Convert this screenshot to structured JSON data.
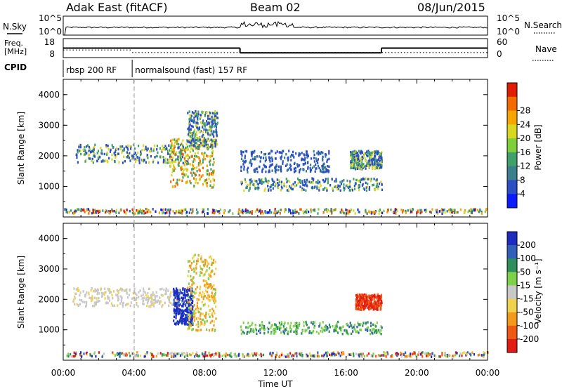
{
  "header": {
    "station": "Adak East (fitACF)",
    "beam": "Beam 02",
    "date": "08/Jun/2015"
  },
  "nsky_panel": {
    "left_label": "N.Sky",
    "right_label": "N.Search",
    "left_ticks": [
      "10^5",
      "10^0"
    ],
    "right_ticks": [
      "10^5",
      "10^0"
    ]
  },
  "freq_panel": {
    "left_label_line1": "Freq.",
    "left_label_line2": "[MHz]",
    "right_label": "Nave",
    "left_ticks": [
      "18",
      "8"
    ],
    "right_ticks": [
      "60",
      "0"
    ],
    "freq_series_mhz": [
      {
        "x": [
          0.0,
          10.0
        ],
        "y": 13.0
      },
      {
        "x": [
          10.0,
          18.0
        ],
        "y": 10.5
      },
      {
        "x": [
          18.0,
          24.0
        ],
        "y": 13.0
      }
    ],
    "nave_series": [
      {
        "x": [
          0.0,
          3.9
        ],
        "y": 24
      },
      {
        "x": [
          3.9,
          24.0
        ],
        "y": 16
      }
    ]
  },
  "cpid_panel": {
    "label": "CPID",
    "segments": [
      {
        "name": "rbsp 200 RF",
        "start_h": 0.0,
        "end_h": 3.9
      },
      {
        "name": "normalsound (fast) 157 RF",
        "start_h": 3.9,
        "end_h": 24.0
      }
    ]
  },
  "chart_data": [
    {
      "type": "heatmap",
      "name": "power",
      "ylabel": "Slant Range [km]",
      "xlabel": "",
      "xlim": [
        0,
        24
      ],
      "ylim": [
        0,
        4500
      ],
      "yticks": [
        "1000",
        "2000",
        "3000",
        "4000"
      ],
      "colorbar": {
        "label": "Power [dB]",
        "ticks": [
          "4",
          "8",
          "12",
          "16",
          "20",
          "24",
          "28"
        ],
        "colors": [
          "#0a1cff",
          "#2b4fc4",
          "#3a7f8c",
          "#3fa06a",
          "#7fcf3a",
          "#d8d820",
          "#f7a600",
          "#f36a00",
          "#e11c00"
        ]
      },
      "features": [
        {
          "t": [
            0.0,
            24.0
          ],
          "r": [
            150,
            300
          ],
          "level": "noise"
        },
        {
          "t": [
            0.7,
            7.0
          ],
          "r": [
            1800,
            2400
          ],
          "level": "mid"
        },
        {
          "t": [
            6.0,
            8.5
          ],
          "r": [
            1000,
            2600
          ],
          "level": "high"
        },
        {
          "t": [
            7.0,
            8.7
          ],
          "r": [
            2300,
            3500
          ],
          "level": "mid"
        },
        {
          "t": [
            10.0,
            18.0
          ],
          "r": [
            900,
            1300
          ],
          "level": "mid"
        },
        {
          "t": [
            10.0,
            15.0
          ],
          "r": [
            1500,
            2200
          ],
          "level": "low"
        },
        {
          "t": [
            16.2,
            18.0
          ],
          "r": [
            1600,
            2200
          ],
          "level": "mid"
        }
      ]
    },
    {
      "type": "heatmap",
      "name": "velocity",
      "ylabel": "Slant Range [km]",
      "xlabel": "Time UT",
      "xlim": [
        0,
        24
      ],
      "ylim": [
        0,
        4500
      ],
      "yticks": [
        "1000",
        "2000",
        "3000",
        "4000"
      ],
      "xticks": [
        "00:00",
        "04:00",
        "08:00",
        "12:00",
        "16:00",
        "20:00",
        "00:00"
      ],
      "colorbar": {
        "label": "Velocity [m s⁻¹]",
        "ticks": [
          "200",
          "100",
          "50",
          "15",
          "-15",
          "-50",
          "-100",
          "-200"
        ],
        "colors": [
          "#1c2cc0",
          "#3260b8",
          "#2e8f5c",
          "#7ed24a",
          "#c8c8c8",
          "#f2d24b",
          "#f29a1c",
          "#ee5a14",
          "#e21c12"
        ]
      },
      "features": [
        {
          "t": [
            0.0,
            24.0
          ],
          "r": [
            150,
            300
          ],
          "level": "mixed"
        },
        {
          "t": [
            0.5,
            6.5
          ],
          "r": [
            1800,
            2400
          ],
          "level": "gray"
        },
        {
          "t": [
            6.2,
            7.3
          ],
          "r": [
            1200,
            2400
          ],
          "level": "blue"
        },
        {
          "t": [
            7.0,
            8.6
          ],
          "r": [
            1000,
            3500
          ],
          "level": "orange"
        },
        {
          "t": [
            10.0,
            18.0
          ],
          "r": [
            900,
            1300
          ],
          "level": "green"
        },
        {
          "t": [
            16.5,
            18.0
          ],
          "r": [
            1700,
            2200
          ],
          "level": "red"
        }
      ]
    }
  ]
}
